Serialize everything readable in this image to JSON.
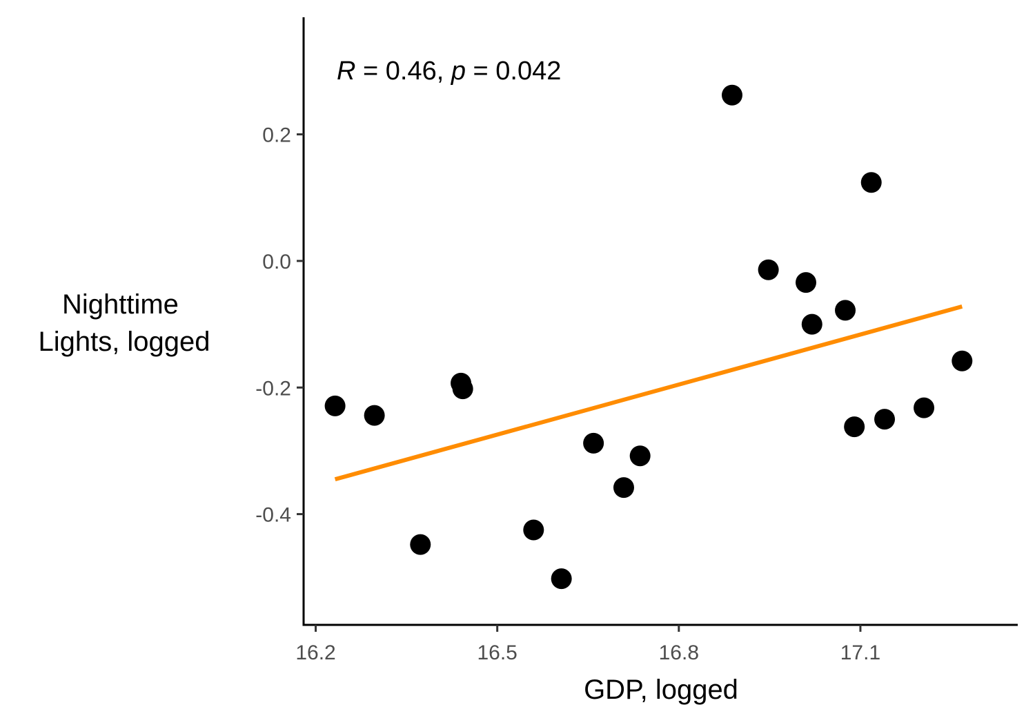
{
  "chart_data": {
    "type": "scatter",
    "title": "",
    "xlabel": "GDP, logged",
    "ylabel_lines": [
      "Nighttime",
      "Lights, logged"
    ],
    "xlim": [
      16.18,
      17.36
    ],
    "ylim": [
      -0.575,
      0.385
    ],
    "x_ticks": [
      16.2,
      16.5,
      16.8,
      17.1
    ],
    "x_tick_labels": [
      "16.2",
      "16.5",
      "16.8",
      "17.1"
    ],
    "y_ticks": [
      0.2,
      0.0,
      -0.2,
      -0.4
    ],
    "y_tick_labels": [
      "0.2",
      "0.0",
      "-0.2",
      "-0.4"
    ],
    "annotation": {
      "r_symbol": "R",
      "r_value": " = 0.46, ",
      "p_symbol": "p",
      "p_value": " = 0.042"
    },
    "points": [
      {
        "x": 16.232,
        "y": -0.229
      },
      {
        "x": 16.297,
        "y": -0.244
      },
      {
        "x": 16.373,
        "y": -0.448
      },
      {
        "x": 16.44,
        "y": -0.193
      },
      {
        "x": 16.443,
        "y": -0.202
      },
      {
        "x": 16.56,
        "y": -0.425
      },
      {
        "x": 16.606,
        "y": -0.502
      },
      {
        "x": 16.659,
        "y": -0.288
      },
      {
        "x": 16.709,
        "y": -0.358
      },
      {
        "x": 16.736,
        "y": -0.308
      },
      {
        "x": 16.888,
        "y": 0.262
      },
      {
        "x": 16.948,
        "y": -0.014
      },
      {
        "x": 17.01,
        "y": -0.034
      },
      {
        "x": 17.02,
        "y": -0.1
      },
      {
        "x": 17.075,
        "y": -0.078
      },
      {
        "x": 17.09,
        "y": -0.262
      },
      {
        "x": 17.118,
        "y": 0.124
      },
      {
        "x": 17.14,
        "y": -0.25
      },
      {
        "x": 17.205,
        "y": -0.232
      },
      {
        "x": 17.268,
        "y": -0.158
      }
    ],
    "fit_line": {
      "x": [
        16.232,
        17.268
      ],
      "y": [
        -0.345,
        -0.072
      ],
      "color": "#ff8c00"
    },
    "point_color": "#000000",
    "grid": false,
    "legend": "none"
  }
}
